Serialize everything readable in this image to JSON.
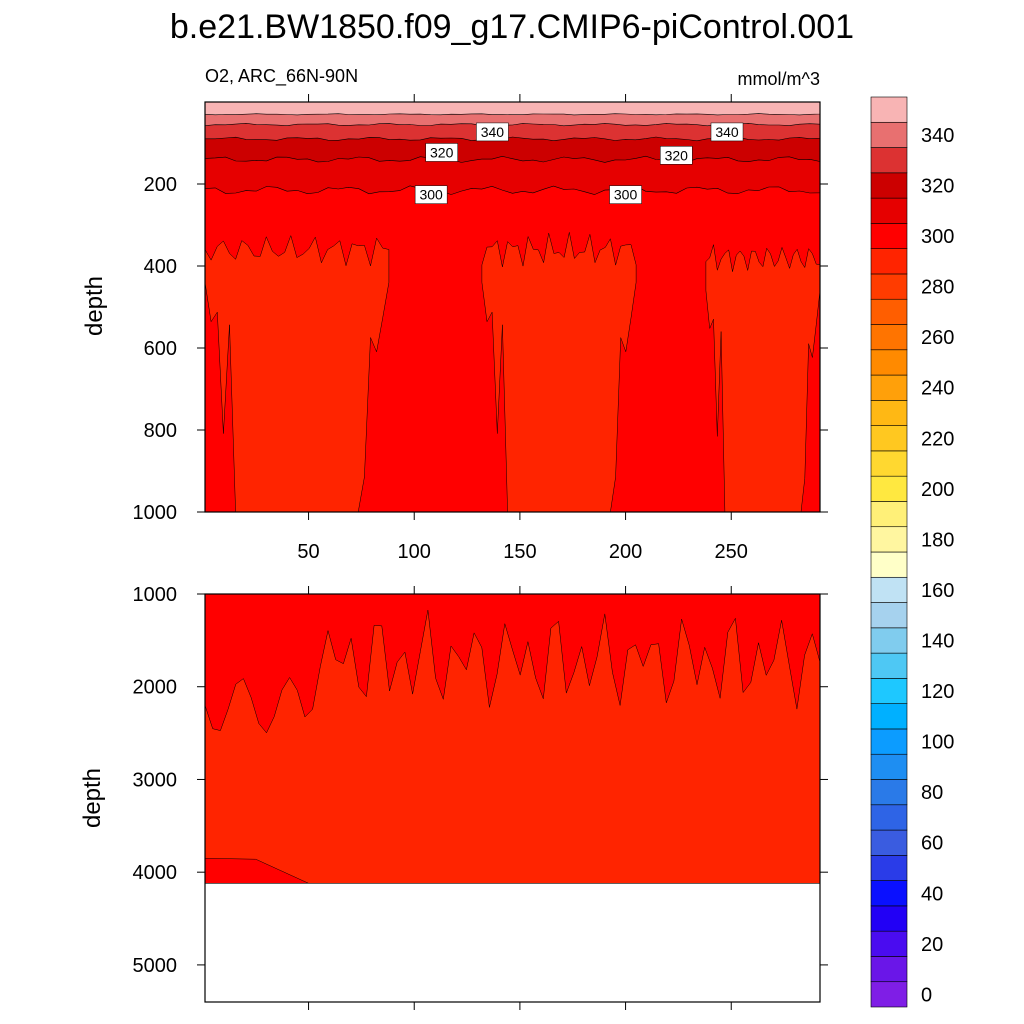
{
  "chart_data": {
    "type": "heatmap",
    "title": "b.e21.BW1850.f09_g17.CMIP6-piControl.001",
    "variable_label": "O2, ARC_66N-90N",
    "units_label": "mmol/m^3",
    "colorbar": {
      "levels": [
        0,
        10,
        20,
        30,
        40,
        50,
        60,
        70,
        80,
        90,
        100,
        110,
        120,
        130,
        140,
        150,
        160,
        170,
        180,
        190,
        200,
        210,
        220,
        230,
        240,
        250,
        260,
        270,
        280,
        290,
        300,
        310,
        320,
        330,
        340,
        350
      ],
      "colors": [
        "#7f1ee6",
        "#6a16e8",
        "#4a0cf0",
        "#2200f5",
        "#0a10ff",
        "#2a3ce8",
        "#3a5ce0",
        "#2e64e6",
        "#2a7ae8",
        "#1e8ef2",
        "#0c9cff",
        "#00b0ff",
        "#1ec8ff",
        "#4ec8f4",
        "#80ccee",
        "#a6d2ee",
        "#c0e2f4",
        "#ffffc8",
        "#fff6a0",
        "#fff078",
        "#ffe840",
        "#ffd830",
        "#ffc820",
        "#ffb814",
        "#ffa00a",
        "#ff8a00",
        "#ff7400",
        "#ff5e00",
        "#ff3c00",
        "#ff2400",
        "#ff0000",
        "#e60000",
        "#cc0000",
        "#dc3232",
        "#e87070",
        "#f8b4b4"
      ],
      "tick_labels": [
        "0",
        "20",
        "40",
        "60",
        "80",
        "100",
        "120",
        "140",
        "160",
        "180",
        "200",
        "220",
        "240",
        "260",
        "280",
        "300",
        "320",
        "340"
      ]
    },
    "x_axis": {
      "ticks": [
        50,
        100,
        150,
        200,
        250
      ],
      "range": [
        1,
        292
      ]
    },
    "top_panel": {
      "ylabel": "depth",
      "y_range": [
        0,
        1000
      ],
      "y_ticks": [
        200,
        400,
        600,
        800,
        1000
      ],
      "contour_labels": [
        {
          "text": "340",
          "x": 137,
          "y": 73
        },
        {
          "text": "340",
          "x": 248,
          "y": 73
        },
        {
          "text": "320",
          "x": 113,
          "y": 123
        },
        {
          "text": "320",
          "x": 224,
          "y": 130
        },
        {
          "text": "300",
          "x": 108,
          "y": 226
        },
        {
          "text": "300",
          "x": 200,
          "y": 226
        }
      ]
    },
    "bottom_panel": {
      "ylabel": "depth",
      "y_range": [
        1000,
        5400
      ],
      "y_ticks": [
        1000,
        2000,
        3000,
        4000,
        5000
      ],
      "bottom_depth": 4120
    }
  }
}
